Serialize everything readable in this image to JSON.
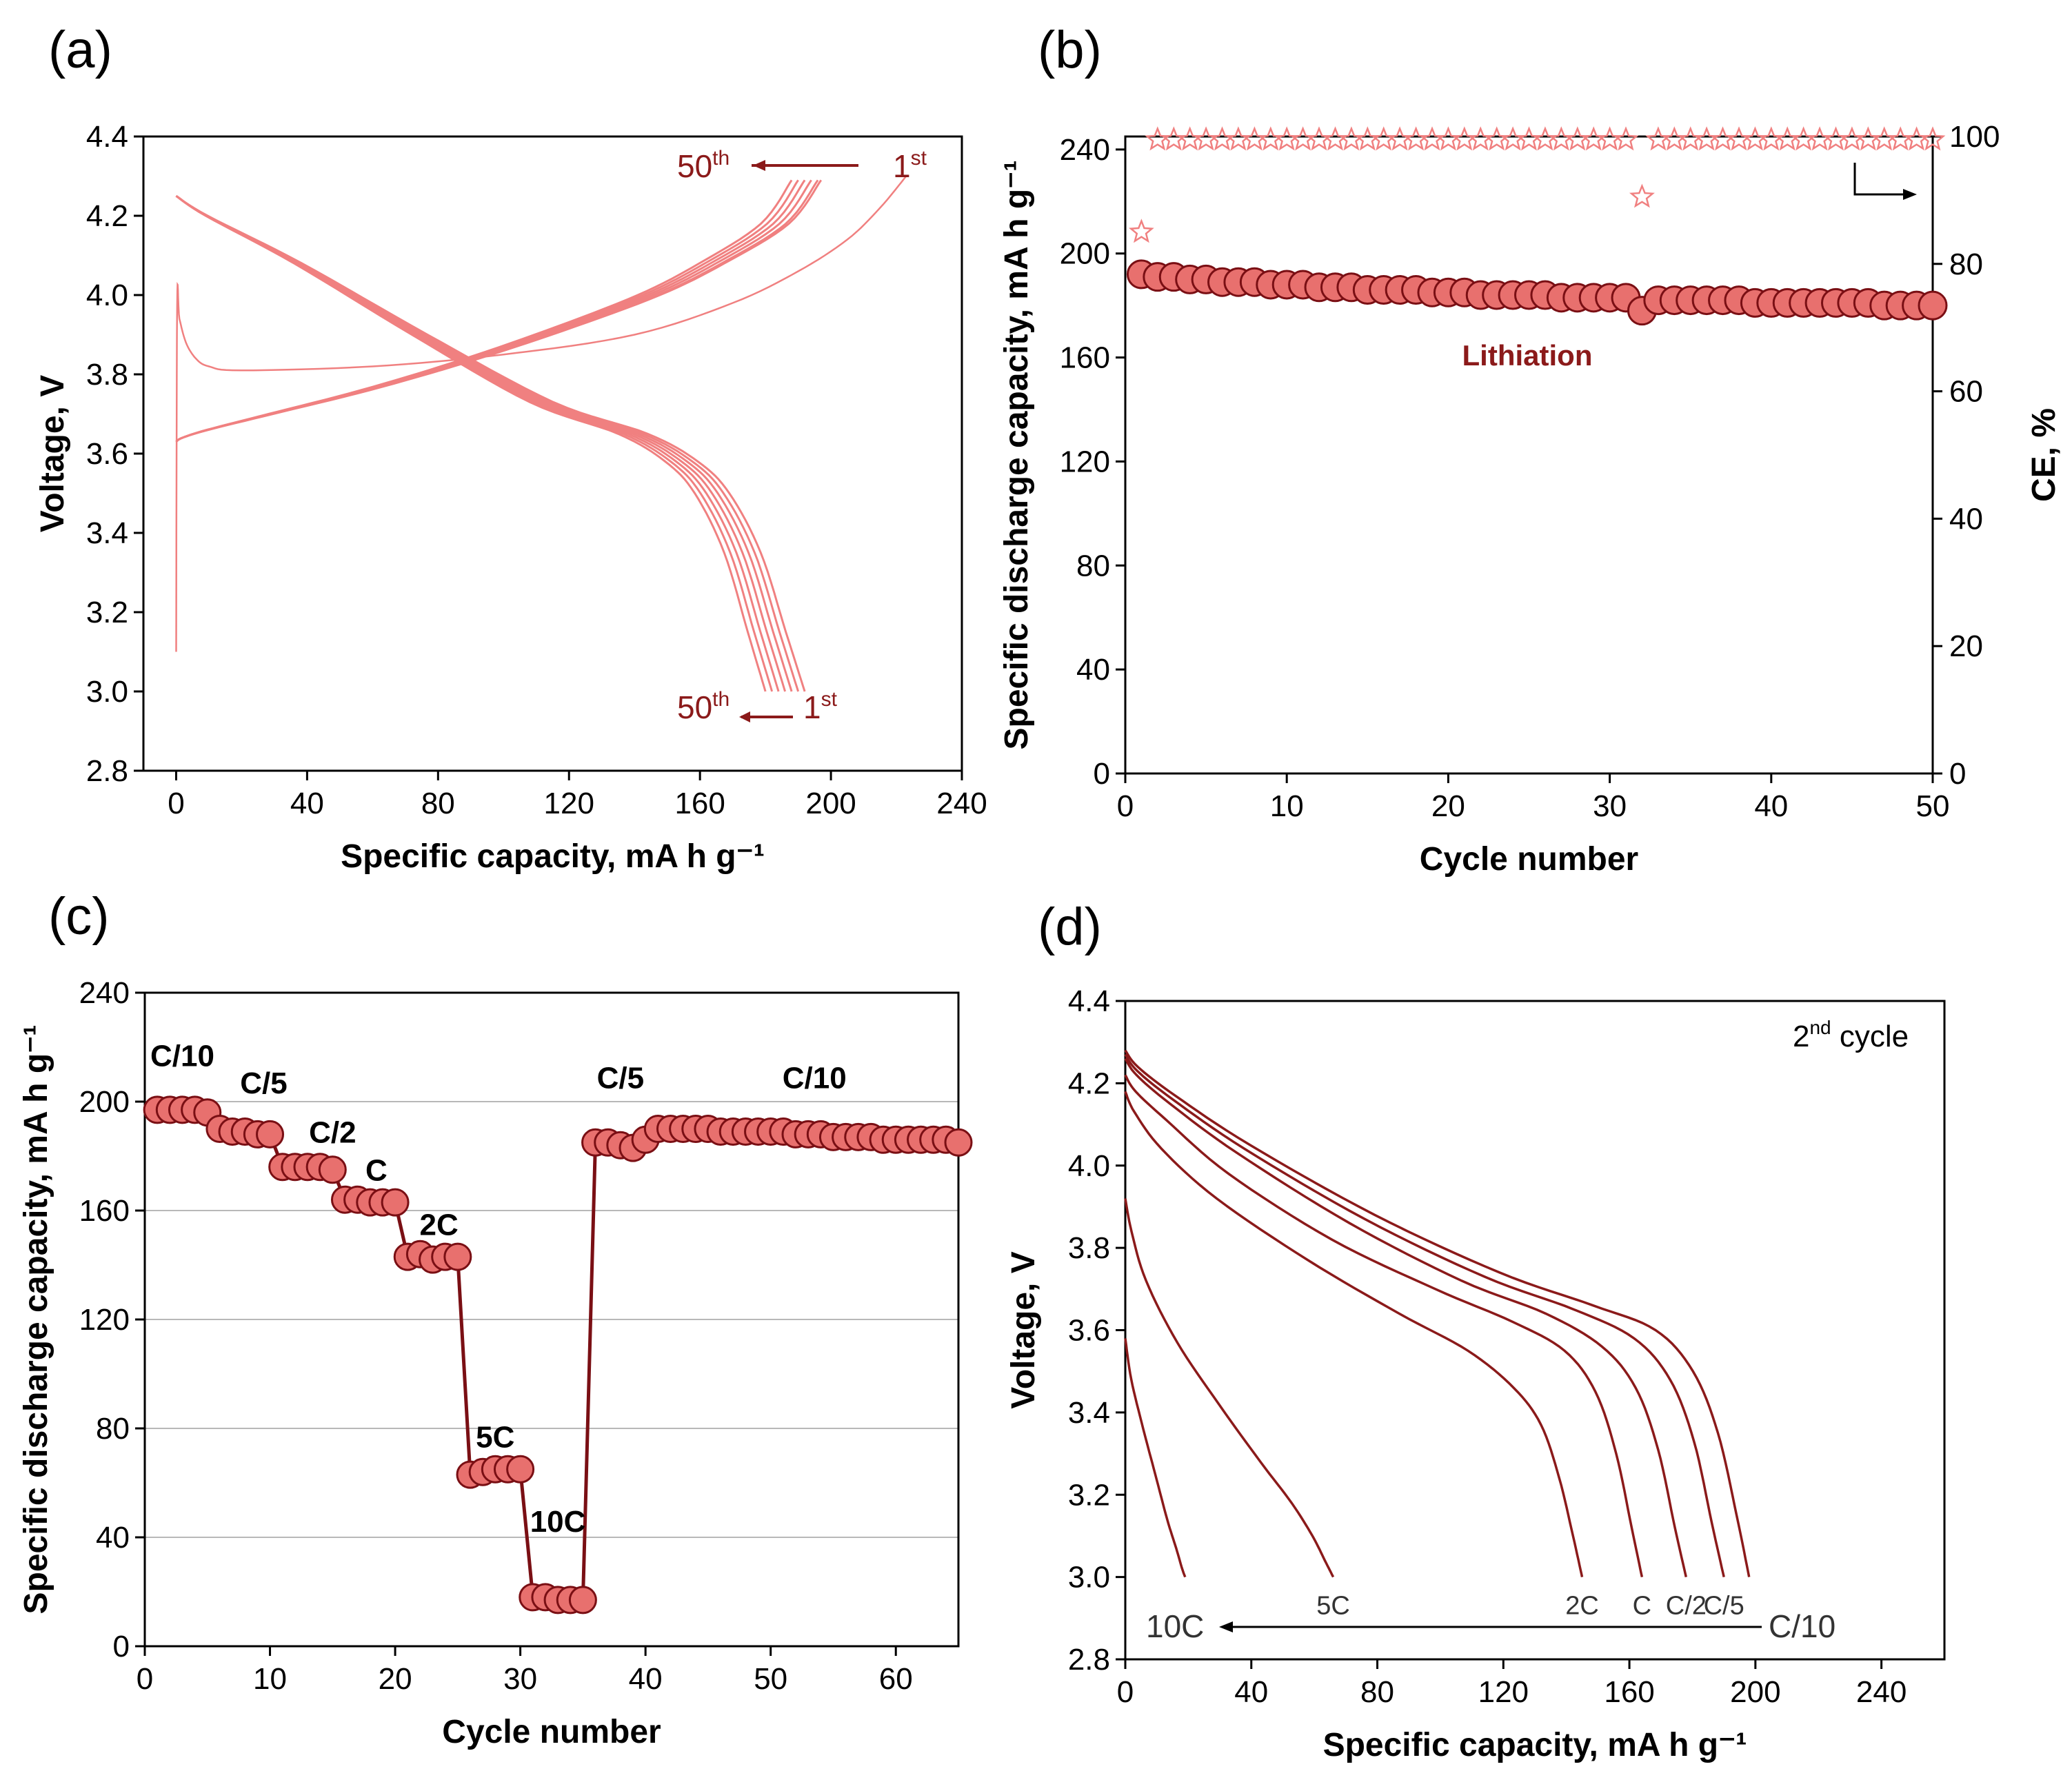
{
  "colors": {
    "light_red": "#f08080",
    "dark_red": "#8b1a1a",
    "marker_fill": "#e8706e",
    "marker_edge": "#7a0f14"
  },
  "chart_data": [
    {
      "panel": "(a)",
      "type": "line",
      "xlabel": "Specific capacity, mA h g⁻¹",
      "ylabel": "Voltage, V",
      "xlim": [
        -10,
        240
      ],
      "ylim": [
        2.8,
        4.4
      ],
      "xticks": [
        0,
        40,
        80,
        120,
        160,
        200,
        240
      ],
      "yticks": [
        2.8,
        3.0,
        3.2,
        3.4,
        3.6,
        3.8,
        4.0,
        4.2,
        4.4
      ],
      "annotations": {
        "charge_50": "50th",
        "charge_1": "1st",
        "discharge_50": "50th",
        "discharge_1": "1st"
      },
      "first_charge": {
        "x": [
          0,
          0.3,
          1,
          3,
          6,
          10,
          20,
          60,
          100,
          140,
          170,
          190,
          205,
          215,
          223
        ],
        "y": [
          3.1,
          3.97,
          3.94,
          3.88,
          3.84,
          3.82,
          3.81,
          3.82,
          3.85,
          3.9,
          3.98,
          4.06,
          4.14,
          4.22,
          4.3
        ]
      },
      "charge_curves": {
        "cap_max": [
          188,
          190,
          192,
          194,
          196,
          197
        ],
        "x": [
          0,
          0.01,
          0.05,
          0.15,
          0.3,
          0.45,
          0.6,
          0.75,
          0.85,
          0.95,
          1.0
        ],
        "y": [
          3.63,
          3.64,
          3.66,
          3.7,
          3.76,
          3.83,
          3.91,
          4.0,
          4.08,
          4.18,
          4.29
        ]
      },
      "discharge_curves": {
        "cap_max": [
          180,
          182,
          184,
          186,
          188,
          190,
          192
        ],
        "x": [
          0,
          0.05,
          0.2,
          0.4,
          0.6,
          0.75,
          0.83,
          0.88,
          0.93,
          0.97,
          1.0
        ],
        "y": [
          4.25,
          4.2,
          4.08,
          3.9,
          3.73,
          3.65,
          3.58,
          3.5,
          3.35,
          3.15,
          3.0
        ]
      }
    },
    {
      "panel": "(b)",
      "type": "scatter",
      "xlabel": "Cycle number",
      "ylabel": "Specific discharge capacity, mA h g⁻¹",
      "ylabel_right": "CE, %",
      "xlim": [
        0,
        50
      ],
      "ylim": [
        0,
        245
      ],
      "ylim_right": [
        0,
        100
      ],
      "xticks": [
        0,
        10,
        20,
        30,
        40,
        50
      ],
      "yticks": [
        0,
        40,
        80,
        120,
        160,
        200,
        240
      ],
      "yticks_right": [
        0,
        20,
        40,
        60,
        80,
        100
      ],
      "series_label": "Lithiation",
      "capacity": [
        192,
        191,
        191,
        190,
        190,
        189,
        189,
        189,
        188,
        188,
        188,
        187,
        187,
        187,
        186,
        186,
        186,
        186,
        185,
        185,
        185,
        184,
        184,
        184,
        184,
        184,
        183,
        183,
        183,
        183,
        183,
        178,
        182,
        182,
        182,
        182,
        182,
        182,
        181,
        181,
        181,
        181,
        181,
        181,
        181,
        181,
        180,
        180,
        180,
        180
      ],
      "ce": [
        85,
        99.5,
        99.5,
        99.5,
        99.5,
        99.5,
        99.5,
        99.5,
        99.5,
        99.5,
        99.5,
        99.5,
        99.5,
        99.5,
        99.5,
        99.5,
        99.5,
        99.5,
        99.5,
        99.5,
        99.5,
        99.5,
        99.5,
        99.5,
        99.5,
        99.5,
        99.5,
        99.5,
        99.5,
        99.5,
        99.5,
        90.5,
        99.5,
        99.5,
        99.5,
        99.5,
        99.5,
        99.5,
        99.5,
        99.5,
        99.5,
        99.5,
        99.5,
        99.5,
        99.5,
        99.5,
        99.5,
        99.5,
        99.5,
        99.5
      ]
    },
    {
      "panel": "(c)",
      "type": "line",
      "xlabel": "Cycle number",
      "ylabel": "Specific discharge capacity, mA h g⁻¹",
      "xlim": [
        0,
        65
      ],
      "ylim": [
        0,
        240
      ],
      "xticks": [
        0,
        10,
        20,
        30,
        40,
        50,
        60
      ],
      "yticks": [
        0,
        40,
        80,
        120,
        160,
        200,
        240
      ],
      "grid_y": true,
      "rate_labels": [
        {
          "text": "C/10",
          "x": 3,
          "y": 213
        },
        {
          "text": "C/5",
          "x": 9.5,
          "y": 203
        },
        {
          "text": "C/2",
          "x": 15,
          "y": 185
        },
        {
          "text": "C",
          "x": 18.5,
          "y": 171
        },
        {
          "text": "2C",
          "x": 23.5,
          "y": 151
        },
        {
          "text": "5C",
          "x": 28,
          "y": 73
        },
        {
          "text": "10C",
          "x": 33,
          "y": 42
        },
        {
          "text": "C/5",
          "x": 38,
          "y": 205
        },
        {
          "text": "C/10",
          "x": 53.5,
          "y": 205
        }
      ],
      "x": [
        1,
        2,
        3,
        4,
        5,
        6,
        7,
        8,
        9,
        10,
        11,
        12,
        13,
        14,
        15,
        16,
        17,
        18,
        19,
        20,
        21,
        22,
        23,
        24,
        25,
        26,
        27,
        28,
        29,
        30,
        31,
        32,
        33,
        34,
        35,
        36,
        37,
        38,
        39,
        40,
        41,
        42,
        43,
        44,
        45,
        46,
        47,
        48,
        49,
        50,
        51,
        52,
        53,
        54,
        55,
        56,
        57,
        58,
        59,
        60,
        61,
        62,
        63,
        64,
        65
      ],
      "values": [
        197,
        197,
        197,
        197,
        196,
        190,
        189,
        189,
        188,
        188,
        176,
        176,
        176,
        176,
        175,
        164,
        164,
        163,
        163,
        163,
        143,
        144,
        142,
        143,
        143,
        63,
        64,
        65,
        65,
        65,
        18,
        18,
        17,
        17,
        17,
        185,
        185,
        184,
        183,
        186,
        190,
        190,
        190,
        190,
        190,
        189,
        189,
        189,
        189,
        189,
        189,
        188,
        188,
        188,
        187,
        187,
        187,
        187,
        186,
        186,
        186,
        186,
        186,
        186,
        185
      ]
    },
    {
      "panel": "(d)",
      "type": "line",
      "xlabel": "Specific capacity, mA h g⁻¹",
      "ylabel": "Voltage, V",
      "xlim": [
        0,
        260
      ],
      "ylim": [
        2.8,
        4.4
      ],
      "xticks": [
        0,
        40,
        80,
        120,
        160,
        200,
        240
      ],
      "yticks": [
        2.8,
        3.0,
        3.2,
        3.4,
        3.6,
        3.8,
        4.0,
        4.2,
        4.4
      ],
      "cycle_label": {
        "prefix": "2",
        "sup": "nd",
        "suffix": " cycle"
      },
      "arrow_labels": {
        "left": "10C",
        "right": "C/10"
      },
      "series": [
        {
          "name": "C/10",
          "xmax": 198,
          "x": [
            0,
            0.02,
            0.08,
            0.2,
            0.4,
            0.6,
            0.75,
            0.85,
            0.91,
            0.95,
            0.98,
            1.0
          ],
          "y": [
            4.28,
            4.24,
            4.17,
            4.05,
            3.88,
            3.74,
            3.66,
            3.6,
            3.5,
            3.35,
            3.15,
            3.0
          ]
        },
        {
          "name": "C/5",
          "xmax": 190,
          "x": [
            0,
            0.02,
            0.08,
            0.2,
            0.4,
            0.6,
            0.75,
            0.85,
            0.91,
            0.95,
            0.98,
            1.0
          ],
          "y": [
            4.27,
            4.23,
            4.16,
            4.04,
            3.87,
            3.73,
            3.65,
            3.58,
            3.48,
            3.33,
            3.13,
            3.0
          ]
        },
        {
          "name": "C/2",
          "xmax": 178,
          "x": [
            0,
            0.02,
            0.08,
            0.2,
            0.4,
            0.6,
            0.75,
            0.85,
            0.91,
            0.95,
            0.98,
            1.0
          ],
          "y": [
            4.26,
            4.22,
            4.15,
            4.03,
            3.86,
            3.72,
            3.64,
            3.56,
            3.46,
            3.31,
            3.12,
            3.0
          ]
        },
        {
          "name": "C",
          "xmax": 164,
          "x": [
            0,
            0.02,
            0.08,
            0.2,
            0.4,
            0.6,
            0.75,
            0.85,
            0.91,
            0.95,
            0.98,
            1.0
          ],
          "y": [
            4.22,
            4.18,
            4.11,
            3.98,
            3.82,
            3.7,
            3.62,
            3.55,
            3.45,
            3.3,
            3.12,
            3.0
          ]
        },
        {
          "name": "2C",
          "xmax": 145,
          "x": [
            0,
            0.02,
            0.08,
            0.2,
            0.4,
            0.6,
            0.75,
            0.85,
            0.91,
            0.95,
            0.98,
            1.0
          ],
          "y": [
            4.18,
            4.13,
            4.04,
            3.92,
            3.77,
            3.64,
            3.55,
            3.46,
            3.37,
            3.24,
            3.1,
            3.0
          ]
        },
        {
          "name": "5C",
          "xmax": 66,
          "x": [
            0,
            0.03,
            0.1,
            0.25,
            0.45,
            0.65,
            0.8,
            0.9,
            0.96,
            1.0
          ],
          "y": [
            3.92,
            3.84,
            3.72,
            3.57,
            3.42,
            3.28,
            3.18,
            3.1,
            3.04,
            3.0
          ]
        },
        {
          "name": "10C",
          "xmax": 19,
          "x": [
            0,
            0.1,
            0.3,
            0.5,
            0.7,
            0.85,
            0.95,
            1.0
          ],
          "y": [
            3.58,
            3.48,
            3.36,
            3.25,
            3.14,
            3.07,
            3.02,
            3.0
          ]
        }
      ]
    }
  ]
}
